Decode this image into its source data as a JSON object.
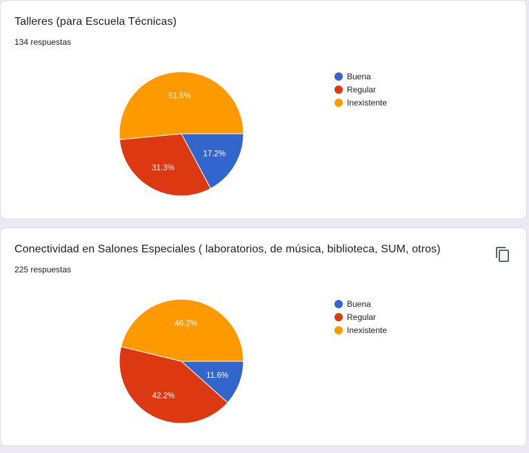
{
  "colors": {
    "buena": "#3366cc",
    "regular": "#dc3912",
    "inexistente": "#ff9900"
  },
  "cards": [
    {
      "title": "Talleres (para Escuela Técnicas)",
      "responses": "134 respuestas",
      "legend": [
        "Buena",
        "Regular",
        "Inexistente"
      ],
      "labels": [
        "17.2%",
        "31.3%",
        "51.5%"
      ]
    },
    {
      "title": "Conectividad en Salones Especiales ( laboratorios, de música, biblioteca, SUM, otros)",
      "responses": "225 respuestas",
      "copy_icon": "copy-icon",
      "legend": [
        "Buena",
        "Regular",
        "Inexistente"
      ],
      "labels": [
        "11.6%",
        "42.2%",
        "46.2%"
      ]
    }
  ],
  "chart_data": [
    {
      "type": "pie",
      "title": "Talleres (para Escuela Técnicas)",
      "categories": [
        "Buena",
        "Regular",
        "Inexistente"
      ],
      "values": [
        17.2,
        31.3,
        51.5
      ],
      "colors": [
        "#3366cc",
        "#dc3912",
        "#ff9900"
      ],
      "legend": "right"
    },
    {
      "type": "pie",
      "title": "Conectividad en Salones Especiales ( laboratorios, de música, biblioteca, SUM, otros)",
      "categories": [
        "Buena",
        "Regular",
        "Inexistente"
      ],
      "values": [
        11.6,
        42.2,
        46.2
      ],
      "colors": [
        "#3366cc",
        "#dc3912",
        "#ff9900"
      ],
      "legend": "right"
    }
  ]
}
